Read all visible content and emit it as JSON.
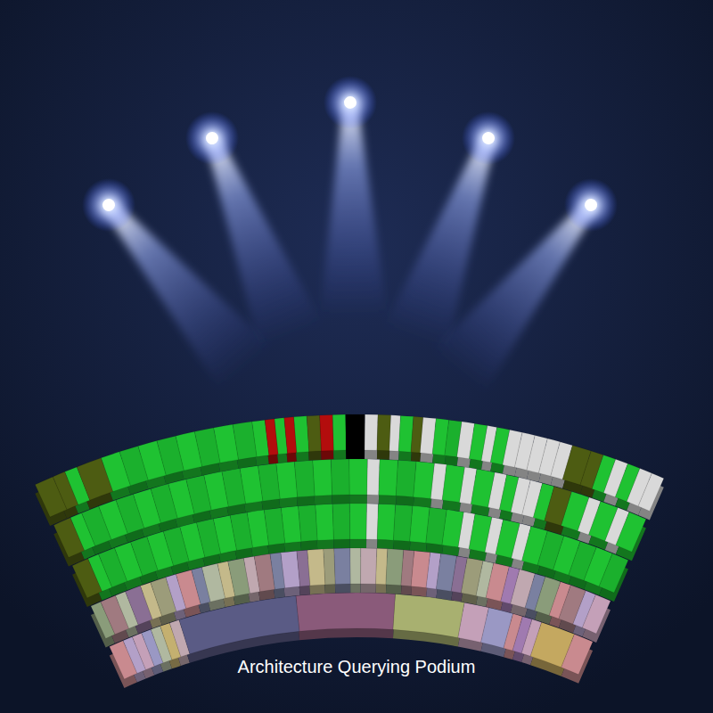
{
  "chart_data": {
    "type": "sunburst",
    "title": "Architecture Querying Podium",
    "xlim": [
      0,
      100
    ],
    "tick_labels": false,
    "series": [
      {
        "values": [
          3,
          2,
          2,
          4,
          3,
          3,
          3,
          3,
          3,
          3,
          3,
          3,
          2,
          1.5,
          1.5,
          1.5,
          2,
          2,
          2,
          2,
          3,
          2,
          2,
          1.5,
          2,
          1.5,
          2,
          2,
          2,
          2,
          2,
          1.5,
          2,
          2,
          2,
          2,
          2,
          2,
          3,
          2,
          2,
          2,
          2,
          2,
          2
        ],
        "colors": [
          "#4d5c12",
          "#4d5c12",
          "#1fc232",
          "#4d5c12",
          "#1fc232",
          "#1bb02d",
          "#1fc232",
          "#1bb02d",
          "#1fc232",
          "#1bb02d",
          "#1fc232",
          "#1bb02d",
          "#1fc232",
          "#b30d0d",
          "#1fc232",
          "#b30d0d",
          "#1fc232",
          "#4d5c12",
          "#b30d0d",
          "#1fc232",
          "#000000",
          "#d9d9d9",
          "#4d5c12",
          "#d9d9d9",
          "#1fc232",
          "#4d5c12",
          "#d9d9d9",
          "#1fc232",
          "#1bb02d",
          "#d9d9d9",
          "#1fc232",
          "#d9d9d9",
          "#1fc232",
          "#d9d9d9",
          "#d9d9d9",
          "#d9d9d9",
          "#d9d9d9",
          "#d9d9d9",
          "#4d5c12",
          "#4d5c12",
          "#1fc232",
          "#d9d9d9",
          "#1fc232",
          "#d9d9d9",
          "#d9d9d9"
        ]
      },
      {
        "values": [
          3,
          2,
          3,
          3,
          3,
          3,
          3,
          3,
          3,
          3,
          3,
          3,
          3,
          3,
          3,
          3,
          3,
          3,
          2,
          3,
          3,
          3,
          2,
          3,
          2,
          3,
          2,
          2,
          2,
          2,
          2,
          3,
          3,
          2,
          3,
          2,
          3
        ],
        "colors": [
          "#4d5c12",
          "#1fc232",
          "#1bb02d",
          "#1fc232",
          "#1bb02d",
          "#1fc232",
          "#1bb02d",
          "#1fc232",
          "#1bb02d",
          "#1fc232",
          "#1bb02d",
          "#1fc232",
          "#1bb02d",
          "#1fc232",
          "#1bb02d",
          "#1fc232",
          "#1bb02d",
          "#1fc232",
          "#d9d9d9",
          "#1fc232",
          "#1bb02d",
          "#1fc232",
          "#d9d9d9",
          "#1fc232",
          "#d9d9d9",
          "#1fc232",
          "#d9d9d9",
          "#1fc232",
          "#d9d9d9",
          "#d9d9d9",
          "#1fc232",
          "#4d5c12",
          "#1fc232",
          "#d9d9d9",
          "#1fc232",
          "#d9d9d9",
          "#1fc232"
        ]
      },
      {
        "values": [
          3,
          2,
          3,
          3,
          3,
          3,
          3,
          3,
          3,
          3,
          3,
          3,
          3,
          3,
          3,
          3,
          3,
          3,
          2,
          3,
          3,
          3,
          3,
          3,
          2,
          3,
          2,
          3,
          2,
          3,
          3,
          3,
          3,
          3,
          3
        ],
        "colors": [
          "#4d5c12",
          "#1fc232",
          "#1bb02d",
          "#1fc232",
          "#1bb02d",
          "#1fc232",
          "#1bb02d",
          "#1fc232",
          "#1bb02d",
          "#1fc232",
          "#1bb02d",
          "#1fc232",
          "#1bb02d",
          "#1fc232",
          "#1bb02d",
          "#1fc232",
          "#1bb02d",
          "#1fc232",
          "#d9d9d9",
          "#1fc232",
          "#1bb02d",
          "#1fc232",
          "#1bb02d",
          "#1fc232",
          "#d9d9d9",
          "#1fc232",
          "#d9d9d9",
          "#1fc232",
          "#d9d9d9",
          "#1fc232",
          "#1bb02d",
          "#1fc232",
          "#1bb02d",
          "#1fc232",
          "#1bb02d"
        ]
      },
      {
        "values": [
          2,
          3,
          2,
          3,
          2,
          3,
          2,
          3,
          2,
          3,
          2,
          3,
          2,
          3,
          2,
          3,
          2,
          3,
          2,
          3,
          2,
          3,
          2,
          3,
          2,
          3,
          2,
          3,
          2,
          3,
          2,
          3,
          2,
          3,
          2,
          3,
          2,
          3,
          2,
          3
        ],
        "colors": [
          "#8a9c7a",
          "#a07a80",
          "#b0b8a0",
          "#8a6f94",
          "#c4b98a",
          "#9c9c7a",
          "#b3a0c8",
          "#c98a8f",
          "#7a80a0",
          "#b0b8a0",
          "#c4b98a",
          "#8a9c7a",
          "#c0a8b0",
          "#a07a80",
          "#7a80a0",
          "#b3a0c8",
          "#8a6f94",
          "#c4b98a",
          "#9c9c7a",
          "#7a80a0",
          "#b0b8a0",
          "#c0a8b0",
          "#c4b98a",
          "#8a9c7a",
          "#a07a80",
          "#c98a8f",
          "#b3a0c8",
          "#7a80a0",
          "#8a6f94",
          "#9c9c7a",
          "#b0b8a0",
          "#c98a8f",
          "#a07ab0",
          "#c0a8b0",
          "#7a80a0",
          "#8a9c7a",
          "#c98a8f",
          "#a07a80",
          "#b3a0c8",
          "#c4a0b8"
        ]
      },
      {
        "values": [
          3,
          2,
          2,
          2,
          2,
          2,
          2,
          24,
          20,
          14,
          5,
          5,
          2,
          2,
          2,
          7,
          4
        ],
        "colors": [
          "#c98a8f",
          "#b3a0c8",
          "#c4a0b8",
          "#9a98c4",
          "#b0b8a0",
          "#c4b070",
          "#c0a8b0",
          "#5a5b85",
          "#8a5a7a",
          "#a8b070",
          "#c4a0b8",
          "#9a98c4",
          "#c98a8f",
          "#a07ab0",
          "#c4a0b8",
          "#c4a860",
          "#c98a8f"
        ]
      }
    ]
  }
}
